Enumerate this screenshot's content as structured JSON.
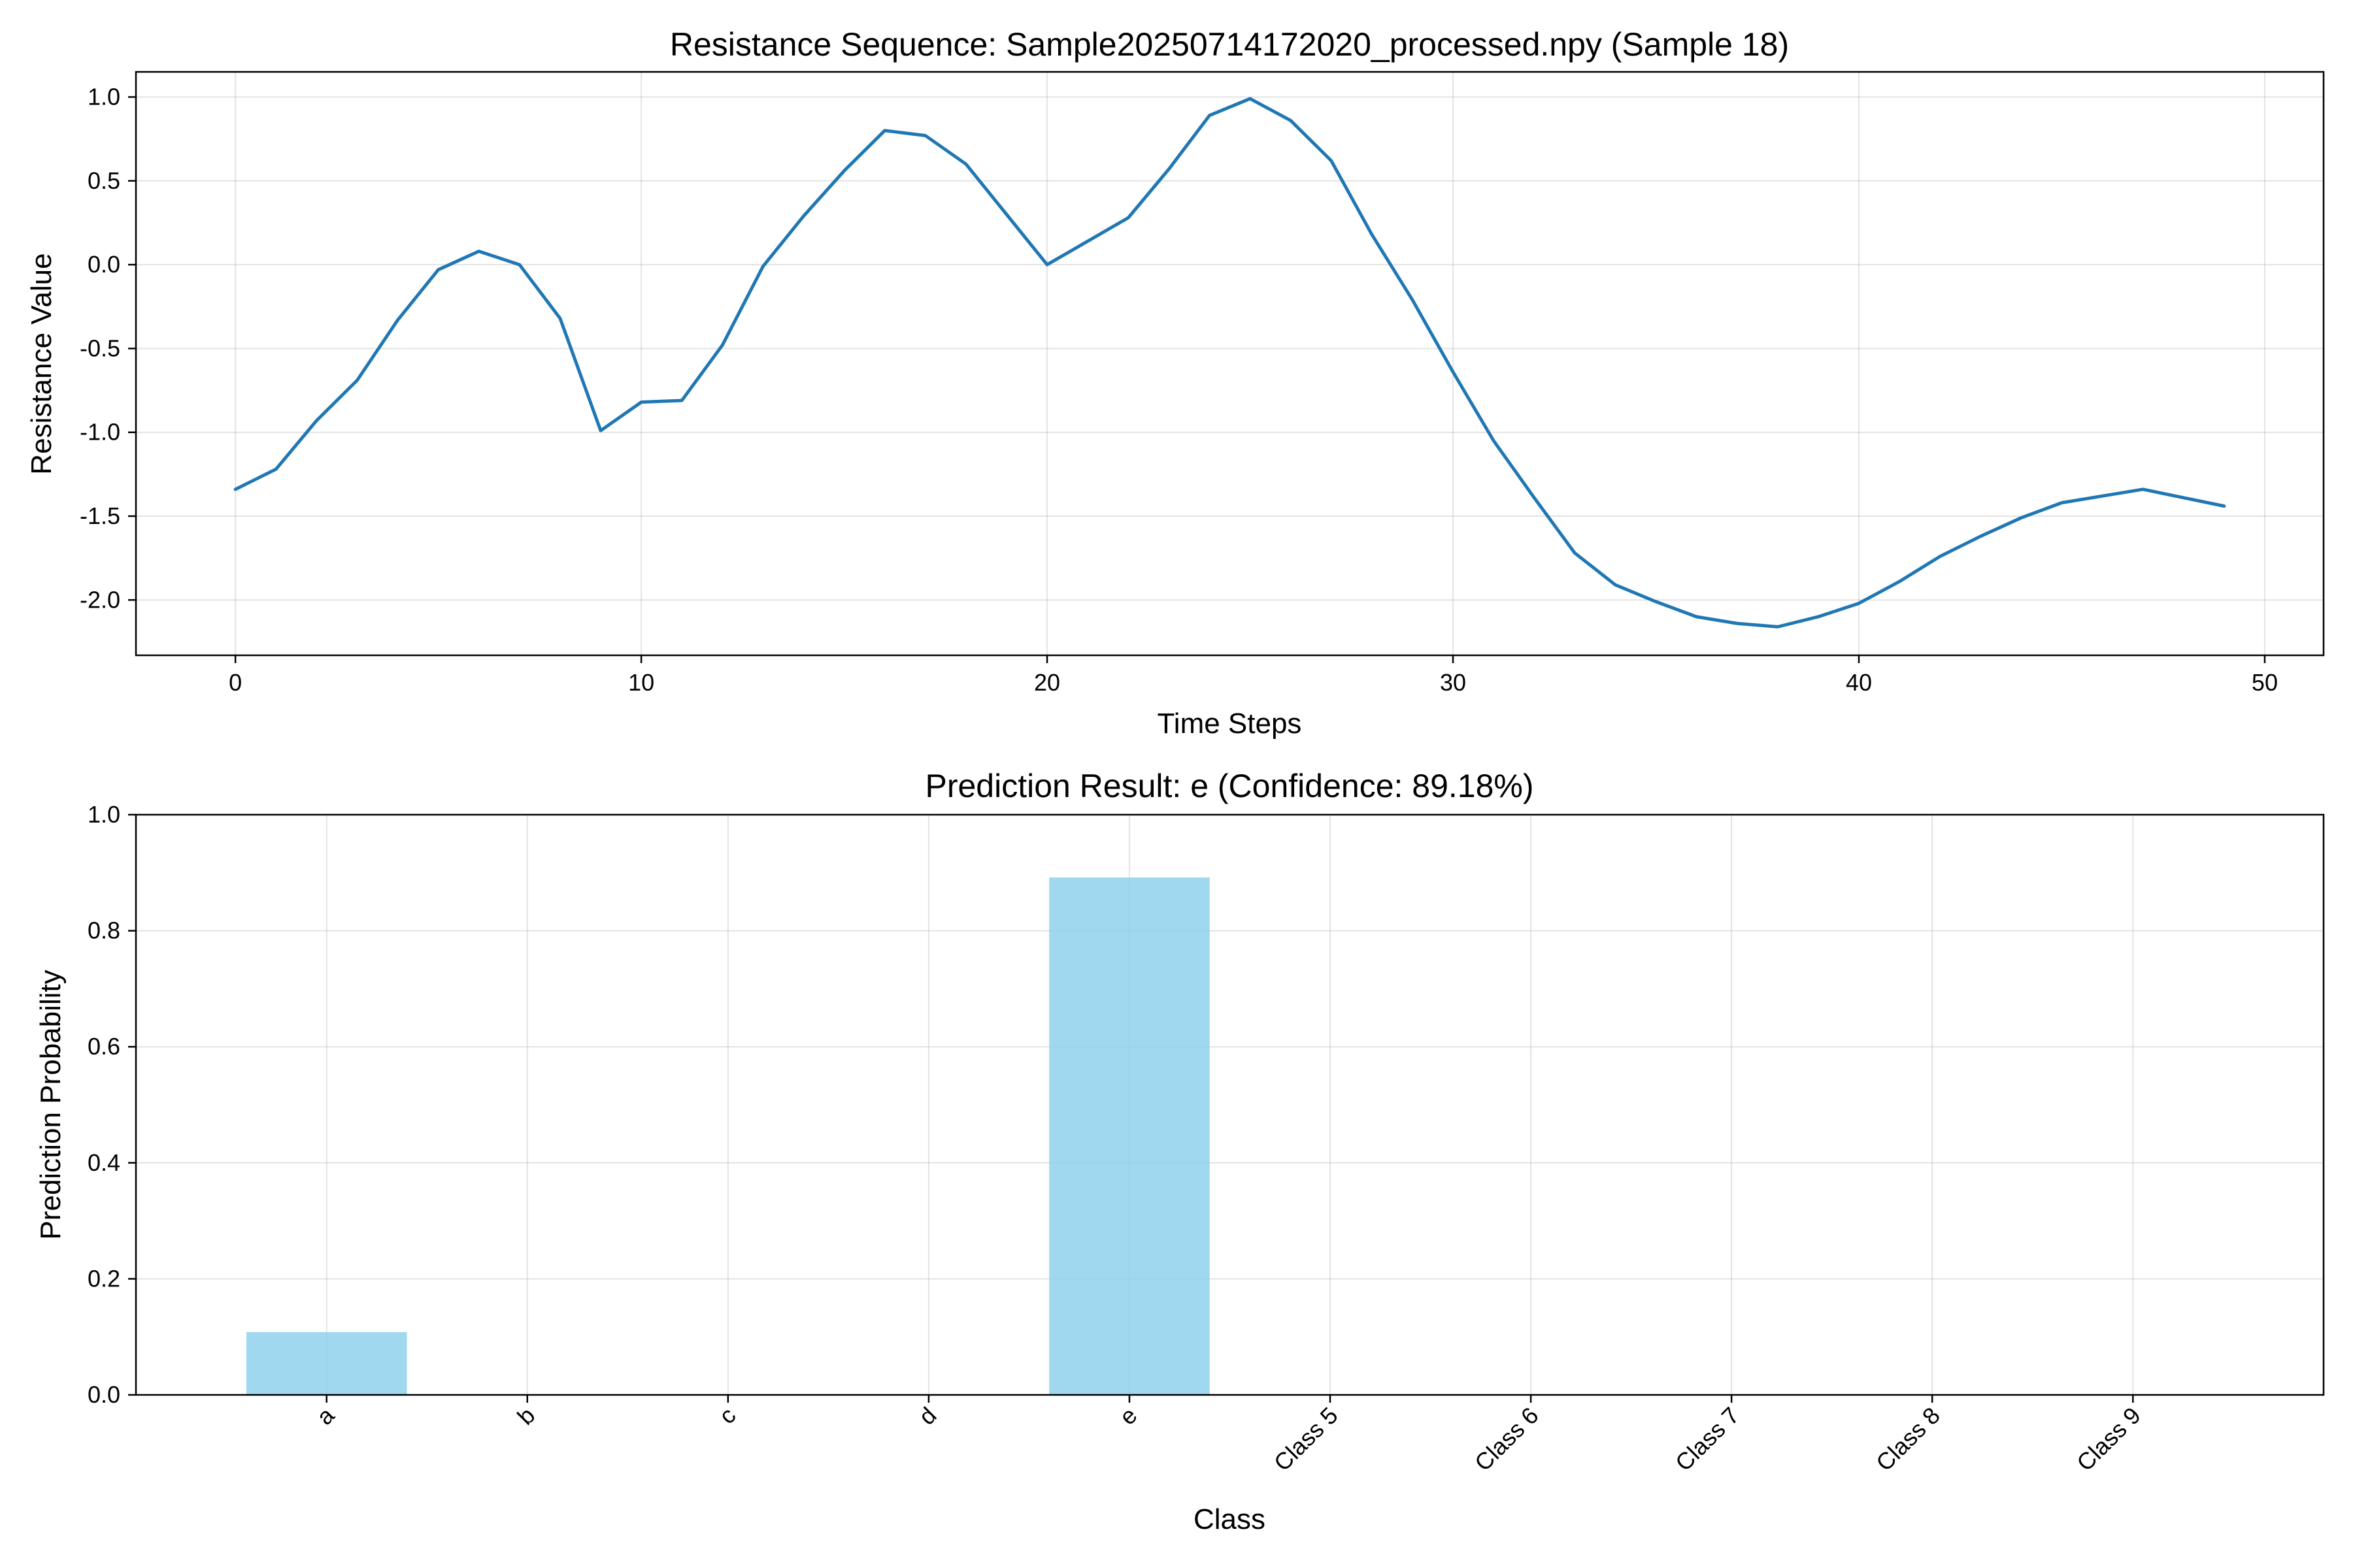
{
  "chart_data": [
    {
      "type": "line",
      "title": "Resistance Sequence: Sample20250714172020_processed.npy (Sample 18)",
      "xlabel": "Time Steps",
      "ylabel": "Resistance Value",
      "xlim": [
        -2.45,
        51.45
      ],
      "ylim": [
        -2.33,
        1.15
      ],
      "xticks": [
        0,
        10,
        20,
        30,
        40,
        50
      ],
      "xtick_labels": [
        "0",
        "10",
        "20",
        "30",
        "40",
        "50"
      ],
      "yticks": [
        -2.0,
        -1.5,
        -1.0,
        -0.5,
        0.0,
        0.5,
        1.0
      ],
      "ytick_labels": [
        "-2.0",
        "-1.5",
        "-1.0",
        "-0.5",
        "0.0",
        "0.5",
        "1.0"
      ],
      "grid": true,
      "color": "#1f77b4",
      "series": [
        {
          "name": "Resistance",
          "x": [
            0,
            1,
            2,
            3,
            4,
            5,
            6,
            7,
            8,
            9,
            10,
            11,
            12,
            13,
            14,
            15,
            16,
            17,
            18,
            19,
            20,
            21,
            22,
            23,
            24,
            25,
            26,
            27,
            28,
            29,
            30,
            31,
            32,
            33,
            34,
            35,
            36,
            37,
            38,
            39,
            40,
            41,
            42,
            43,
            44,
            45,
            46,
            47,
            48,
            49
          ],
          "values": [
            -1.34,
            -1.22,
            -0.93,
            -0.69,
            -0.33,
            -0.03,
            0.08,
            0.0,
            -0.32,
            -0.99,
            -0.82,
            -0.81,
            -0.48,
            -0.01,
            0.29,
            0.56,
            0.8,
            0.77,
            0.6,
            0.3,
            0.0,
            0.14,
            0.28,
            0.57,
            0.89,
            0.99,
            0.86,
            0.62,
            0.18,
            -0.21,
            -0.64,
            -1.05,
            -1.39,
            -1.72,
            -1.91,
            -2.01,
            -2.1,
            -2.14,
            -2.16,
            -2.1,
            -2.02,
            -1.89,
            -1.74,
            -1.62,
            -1.51,
            -1.42,
            -1.38,
            -1.34,
            -1.39,
            -1.44
          ]
        }
      ]
    },
    {
      "type": "bar",
      "title": "Prediction Result: e (Confidence: 89.18%)",
      "xlabel": "Class",
      "ylabel": "Prediction Probability",
      "ylim": [
        0,
        1.0
      ],
      "yticks": [
        0.0,
        0.2,
        0.4,
        0.6,
        0.8,
        1.0
      ],
      "ytick_labels": [
        "0.0",
        "0.2",
        "0.4",
        "0.6",
        "0.8",
        "1.0"
      ],
      "grid": true,
      "color": "#87ceeb",
      "categories": [
        "a",
        "b",
        "c",
        "d",
        "e",
        "Class 5",
        "Class 6",
        "Class 7",
        "Class 8",
        "Class 9"
      ],
      "values": [
        0.1082,
        0.0,
        0.0,
        0.0,
        0.8918,
        0.0,
        0.0,
        0.0,
        0.0,
        0.0
      ]
    }
  ]
}
